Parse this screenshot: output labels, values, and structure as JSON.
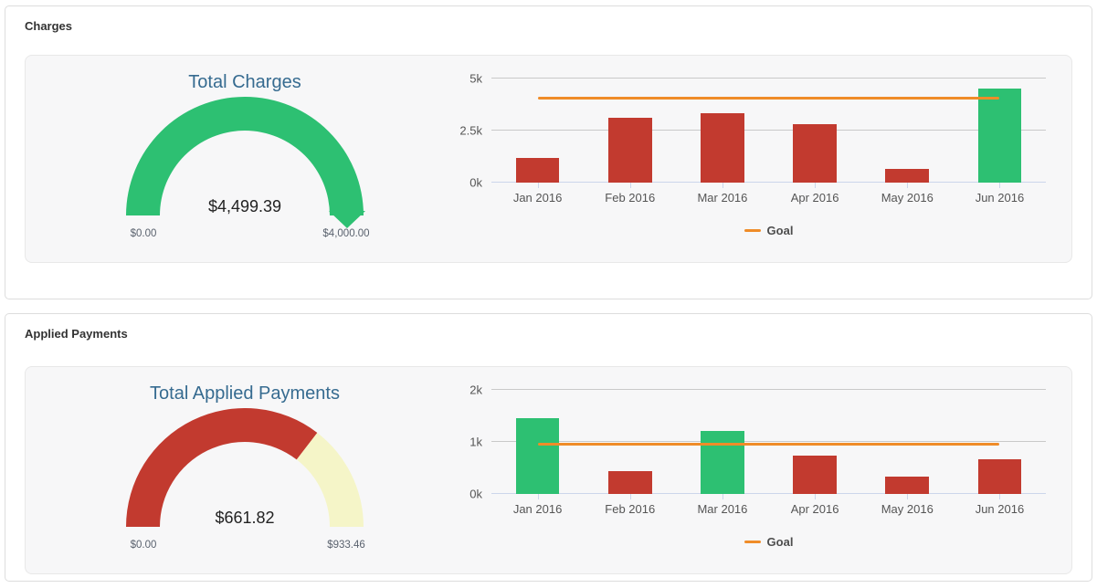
{
  "colors": {
    "green": "#2dc072",
    "red": "#c23a2f",
    "orange": "#ef8c28",
    "pale_yellow": "#f5f5c8",
    "gauge_title_blue": "#366b90"
  },
  "panels": [
    {
      "title": "Charges"
    },
    {
      "title": "Applied Payments"
    }
  ],
  "chart_data": [
    {
      "type": "gauge",
      "panel": "Charges",
      "title": "Total Charges",
      "value": 4499.39,
      "min": 0,
      "max": 4000,
      "value_label": "$4,499.39",
      "min_label": "$0.00",
      "max_label": "$4,000.00",
      "fill_color": "#2dc072",
      "rest_color": "#f5f5c8",
      "overflow_arrow": true
    },
    {
      "type": "bar",
      "panel": "Charges",
      "categories": [
        "Jan 2016",
        "Feb 2016",
        "Mar 2016",
        "Apr 2016",
        "May 2016",
        "Jun 2016"
      ],
      "values": [
        1175,
        3100,
        3325,
        2800,
        640,
        4499.39
      ],
      "bar_colors": [
        "#c23a2f",
        "#c23a2f",
        "#c23a2f",
        "#c23a2f",
        "#c23a2f",
        "#2dc072"
      ],
      "goal": {
        "name": "Goal",
        "value": 4000,
        "color": "#ef8c28"
      },
      "ylim": [
        0,
        5000
      ],
      "yticks": [
        0,
        2500,
        5000
      ],
      "ytick_labels": [
        "0k",
        "2.5k",
        "5k"
      ],
      "legend_position": "bottom-center",
      "grid": true
    },
    {
      "type": "gauge",
      "panel": "Applied Payments",
      "title": "Total Applied Payments",
      "value": 661.82,
      "min": 0,
      "max": 933.46,
      "value_label": "$661.82",
      "min_label": "$0.00",
      "max_label": "$933.46",
      "fill_color": "#c23a2f",
      "rest_color": "#f5f5c8",
      "overflow_arrow": false
    },
    {
      "type": "bar",
      "panel": "Applied Payments",
      "categories": [
        "Jan 2016",
        "Feb 2016",
        "Mar 2016",
        "Apr 2016",
        "May 2016",
        "Jun 2016"
      ],
      "values": [
        1460,
        440,
        1215,
        730,
        340,
        661.82
      ],
      "bar_colors": [
        "#2dc072",
        "#c23a2f",
        "#2dc072",
        "#c23a2f",
        "#c23a2f",
        "#c23a2f"
      ],
      "goal": {
        "name": "Goal",
        "value": 933.46,
        "color": "#ef8c28"
      },
      "ylim": [
        0,
        2000
      ],
      "yticks": [
        0,
        1000,
        2000
      ],
      "ytick_labels": [
        "0k",
        "1k",
        "2k"
      ],
      "legend_position": "bottom-center",
      "grid": true
    }
  ]
}
